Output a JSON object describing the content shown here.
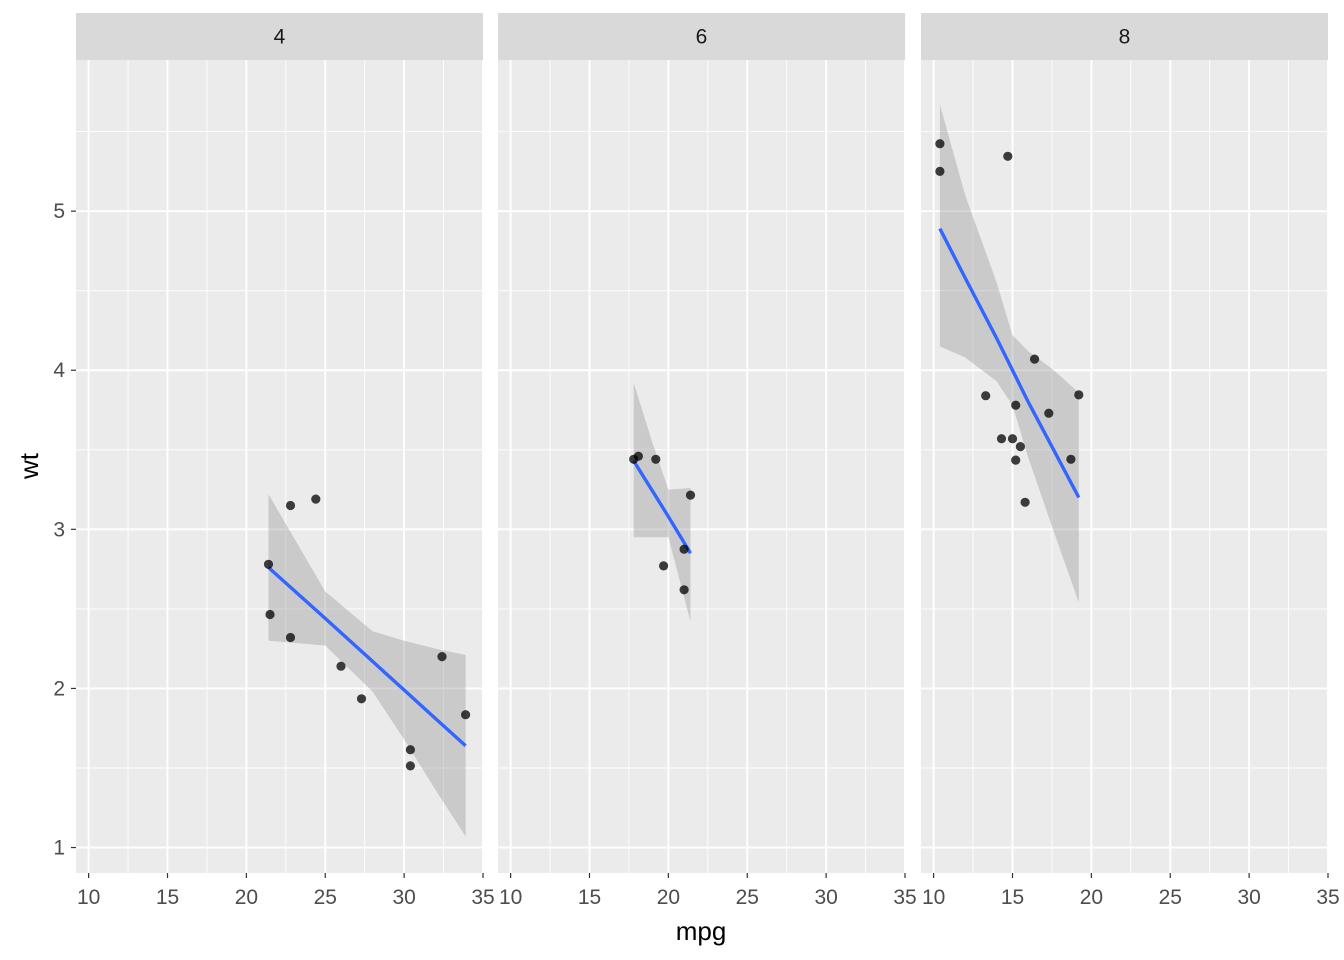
{
  "chart_data": {
    "type": "scatter",
    "title": "",
    "xlabel": "mpg",
    "ylabel": "wt",
    "xlim": [
      9.2,
      35.0
    ],
    "ylim": [
      0.84,
      5.95
    ],
    "x_ticks": [
      10,
      15,
      20,
      25,
      30,
      35
    ],
    "x_tick_labels": [
      "10",
      "15",
      "20",
      "25",
      "30",
      "35"
    ],
    "y_ticks": [
      1,
      2,
      3,
      4,
      5
    ],
    "y_tick_labels": [
      "1",
      "2",
      "3",
      "4",
      "5"
    ],
    "facet_by": "cyl",
    "colors": {
      "panel_bg": "#ebebeb",
      "strip_bg": "#d9d9d9",
      "grid_major": "#ffffff",
      "point": "#000000",
      "smooth_line": "#3366ff",
      "confidence_band": "#999999"
    },
    "panels": [
      {
        "label": "4",
        "points": [
          {
            "x": 22.8,
            "y": 2.32
          },
          {
            "x": 24.4,
            "y": 3.19
          },
          {
            "x": 22.8,
            "y": 3.15
          },
          {
            "x": 32.4,
            "y": 2.2
          },
          {
            "x": 30.4,
            "y": 1.615
          },
          {
            "x": 33.9,
            "y": 1.835
          },
          {
            "x": 21.5,
            "y": 2.465
          },
          {
            "x": 27.3,
            "y": 1.935
          },
          {
            "x": 26.0,
            "y": 2.14
          },
          {
            "x": 30.4,
            "y": 1.513
          },
          {
            "x": 21.4,
            "y": 2.78
          }
        ],
        "smooth": {
          "method": "lm",
          "x": [
            21.4,
            25.0,
            28.0,
            30.0,
            32.0,
            33.9
          ],
          "y": [
            2.76,
            2.44,
            2.17,
            1.99,
            1.81,
            1.64
          ],
          "ymin": [
            2.3,
            2.27,
            1.98,
            1.68,
            1.36,
            1.07
          ],
          "ymax": [
            3.22,
            2.61,
            2.36,
            2.3,
            2.25,
            2.21
          ]
        }
      },
      {
        "label": "6",
        "points": [
          {
            "x": 21.0,
            "y": 2.62
          },
          {
            "x": 21.0,
            "y": 2.875
          },
          {
            "x": 21.4,
            "y": 3.215
          },
          {
            "x": 18.1,
            "y": 3.46
          },
          {
            "x": 19.2,
            "y": 3.44
          },
          {
            "x": 17.8,
            "y": 3.44
          },
          {
            "x": 19.7,
            "y": 2.77
          }
        ],
        "smooth": {
          "method": "lm",
          "x": [
            17.8,
            19.0,
            20.0,
            21.4
          ],
          "y": [
            3.43,
            3.24,
            3.08,
            2.85
          ],
          "ymin": [
            2.95,
            2.95,
            2.95,
            2.42
          ],
          "ymax": [
            3.92,
            3.54,
            3.25,
            3.26
          ]
        }
      },
      {
        "label": "8",
        "points": [
          {
            "x": 18.7,
            "y": 3.44
          },
          {
            "x": 14.3,
            "y": 3.57
          },
          {
            "x": 16.4,
            "y": 4.07
          },
          {
            "x": 17.3,
            "y": 3.73
          },
          {
            "x": 15.2,
            "y": 3.78
          },
          {
            "x": 10.4,
            "y": 5.25
          },
          {
            "x": 10.4,
            "y": 5.424
          },
          {
            "x": 14.7,
            "y": 5.345
          },
          {
            "x": 15.5,
            "y": 3.52
          },
          {
            "x": 15.2,
            "y": 3.435
          },
          {
            "x": 13.3,
            "y": 3.84
          },
          {
            "x": 19.2,
            "y": 3.845
          },
          {
            "x": 15.8,
            "y": 3.17
          },
          {
            "x": 15.0,
            "y": 3.57
          }
        ],
        "smooth": {
          "method": "lm",
          "x": [
            10.4,
            12.0,
            14.0,
            15.0,
            16.0,
            17.5,
            19.2
          ],
          "y": [
            4.89,
            4.58,
            4.2,
            4.0,
            3.8,
            3.52,
            3.2
          ],
          "ymin": [
            4.15,
            4.08,
            3.93,
            3.78,
            3.45,
            3.02,
            2.54
          ],
          "ymax": [
            5.67,
            5.1,
            4.55,
            4.22,
            4.12,
            4.01,
            3.86
          ]
        }
      }
    ]
  }
}
